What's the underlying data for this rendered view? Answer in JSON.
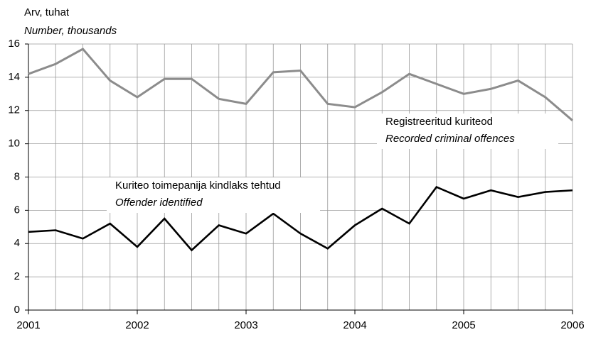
{
  "chart_data": {
    "type": "line",
    "ylabel": "Arv, tuhat",
    "ylabel_en": "Number, thousands",
    "x": [
      2001,
      2001.25,
      2001.5,
      2001.75,
      2002,
      2002.25,
      2002.5,
      2002.75,
      2003,
      2003.25,
      2003.5,
      2003.75,
      2004,
      2004.25,
      2004.5,
      2004.75,
      2005,
      2005.25,
      2005.5,
      2005.75,
      2006
    ],
    "series": [
      {
        "name": "Registreeritud kuriteod",
        "name_en": "Recorded criminal offences",
        "color": "#8c8c8c",
        "values": [
          14.2,
          14.8,
          15.7,
          13.8,
          12.8,
          13.9,
          13.9,
          12.7,
          12.4,
          14.3,
          14.4,
          12.4,
          12.2,
          13.1,
          14.2,
          13.6,
          13.0,
          13.3,
          13.8,
          12.8,
          11.4
        ]
      },
      {
        "name": "Kuriteo toimepanija kindlaks tehtud",
        "name_en": "Offender identified",
        "color": "#000000",
        "values": [
          4.7,
          4.8,
          4.3,
          5.2,
          3.8,
          5.5,
          3.6,
          5.1,
          4.6,
          5.8,
          4.6,
          3.7,
          5.1,
          6.1,
          5.2,
          7.4,
          6.7,
          7.2,
          6.8,
          7.1,
          7.2
        ]
      }
    ],
    "xlim": [
      2001,
      2006
    ],
    "xticks": [
      2001,
      2002,
      2003,
      2004,
      2005,
      2006
    ],
    "ylim": [
      0,
      16
    ],
    "yticks": [
      0,
      2,
      4,
      6,
      8,
      10,
      12,
      14,
      16
    ],
    "grid": true
  }
}
